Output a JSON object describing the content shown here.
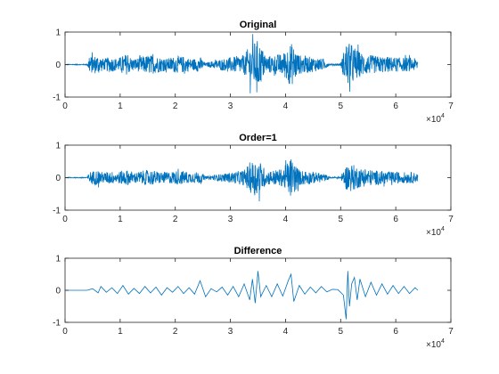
{
  "figure": {
    "background": "#ffffff",
    "axis_color": "#262626",
    "line_color": "#0072BD",
    "x_exponent_label": "×10",
    "x_exponent_power": "4"
  },
  "chart_data": [
    {
      "type": "line",
      "title": "Original",
      "xlabel": "",
      "ylabel": "",
      "xlim": [
        0,
        70000
      ],
      "ylim": [
        -1,
        1
      ],
      "x_ticks": [
        0,
        10000,
        20000,
        30000,
        40000,
        50000,
        60000,
        70000
      ],
      "x_tick_labels": [
        "0",
        "1",
        "2",
        "3",
        "4",
        "5",
        "6",
        "7"
      ],
      "y_ticks": [
        -1,
        0,
        1
      ],
      "y_tick_labels": [
        "-1",
        "0",
        "1"
      ],
      "x_multiplier": "×10^4",
      "grid": false,
      "series": [
        {
          "color": "#0072BD",
          "signal_length": 64000,
          "envelope": [
            [
              0,
              0.01
            ],
            [
              4000,
              0.02
            ],
            [
              4400,
              0.3
            ],
            [
              6000,
              0.35
            ],
            [
              7000,
              0.2
            ],
            [
              8000,
              0.28
            ],
            [
              9500,
              0.22
            ],
            [
              11000,
              0.38
            ],
            [
              12500,
              0.2
            ],
            [
              14000,
              0.3
            ],
            [
              15500,
              0.35
            ],
            [
              17000,
              0.28
            ],
            [
              18500,
              0.22
            ],
            [
              20000,
              0.3
            ],
            [
              21500,
              0.3
            ],
            [
              23000,
              0.2
            ],
            [
              24500,
              0.28
            ],
            [
              25500,
              0.05
            ],
            [
              27000,
              0.15
            ],
            [
              29000,
              0.22
            ],
            [
              31000,
              0.3
            ],
            [
              32500,
              0.35
            ],
            [
              33500,
              0.7
            ],
            [
              35000,
              0.9
            ],
            [
              36500,
              0.3
            ],
            [
              38000,
              0.35
            ],
            [
              39500,
              0.4
            ],
            [
              41000,
              0.8
            ],
            [
              42500,
              0.35
            ],
            [
              44000,
              0.3
            ],
            [
              45500,
              0.25
            ],
            [
              47000,
              0.2
            ],
            [
              48000,
              0.02
            ],
            [
              50000,
              0.05
            ],
            [
              51000,
              0.8
            ],
            [
              52000,
              0.75
            ],
            [
              53500,
              0.45
            ],
            [
              55000,
              0.35
            ],
            [
              57000,
              0.3
            ],
            [
              59000,
              0.28
            ],
            [
              61000,
              0.25
            ],
            [
              63000,
              0.25
            ],
            [
              64000,
              0.2
            ]
          ]
        }
      ]
    },
    {
      "type": "line",
      "title": "Order=1",
      "xlabel": "",
      "ylabel": "",
      "xlim": [
        0,
        70000
      ],
      "ylim": [
        -1,
        1
      ],
      "x_ticks": [
        0,
        10000,
        20000,
        30000,
        40000,
        50000,
        60000,
        70000
      ],
      "x_tick_labels": [
        "0",
        "1",
        "2",
        "3",
        "4",
        "5",
        "6",
        "7"
      ],
      "y_ticks": [
        -1,
        0,
        1
      ],
      "y_tick_labels": [
        "-1",
        "0",
        "1"
      ],
      "x_multiplier": "×10^4",
      "grid": false,
      "series": [
        {
          "color": "#0072BD",
          "signal_length": 64000,
          "envelope": [
            [
              0,
              0.01
            ],
            [
              4000,
              0.02
            ],
            [
              4400,
              0.22
            ],
            [
              6000,
              0.28
            ],
            [
              7000,
              0.18
            ],
            [
              8000,
              0.24
            ],
            [
              9500,
              0.2
            ],
            [
              11000,
              0.3
            ],
            [
              12500,
              0.18
            ],
            [
              14000,
              0.25
            ],
            [
              15500,
              0.28
            ],
            [
              17000,
              0.22
            ],
            [
              18500,
              0.2
            ],
            [
              20000,
              0.25
            ],
            [
              21500,
              0.25
            ],
            [
              23000,
              0.18
            ],
            [
              24500,
              0.22
            ],
            [
              25500,
              0.04
            ],
            [
              27000,
              0.1
            ],
            [
              29000,
              0.15
            ],
            [
              31000,
              0.22
            ],
            [
              32500,
              0.28
            ],
            [
              33500,
              0.55
            ],
            [
              35000,
              0.7
            ],
            [
              36500,
              0.25
            ],
            [
              38000,
              0.28
            ],
            [
              39500,
              0.32
            ],
            [
              41000,
              0.75
            ],
            [
              42500,
              0.28
            ],
            [
              44000,
              0.25
            ],
            [
              45500,
              0.2
            ],
            [
              47000,
              0.15
            ],
            [
              48000,
              0.02
            ],
            [
              50000,
              0.04
            ],
            [
              51000,
              0.45
            ],
            [
              52000,
              0.5
            ],
            [
              53500,
              0.35
            ],
            [
              55000,
              0.3
            ],
            [
              57000,
              0.25
            ],
            [
              59000,
              0.22
            ],
            [
              61000,
              0.2
            ],
            [
              63000,
              0.2
            ],
            [
              64000,
              0.15
            ]
          ]
        }
      ]
    },
    {
      "type": "line",
      "title": "Difference",
      "xlabel": "",
      "ylabel": "",
      "xlim": [
        0,
        70000
      ],
      "ylim": [
        -1,
        1
      ],
      "x_ticks": [
        0,
        10000,
        20000,
        30000,
        40000,
        50000,
        60000,
        70000
      ],
      "x_tick_labels": [
        "0",
        "1",
        "2",
        "3",
        "4",
        "5",
        "6",
        "7"
      ],
      "y_ticks": [
        -1,
        0,
        1
      ],
      "y_tick_labels": [
        "-1",
        "0",
        "1"
      ],
      "x_multiplier": "×10^4",
      "grid": false,
      "series": [
        {
          "color": "#0072BD",
          "x": [
            0,
            4000,
            5000,
            6000,
            6500,
            7500,
            8500,
            9500,
            10500,
            11500,
            12500,
            13500,
            14500,
            15500,
            16500,
            17500,
            18500,
            19500,
            20500,
            21500,
            22500,
            23500,
            24500,
            25500,
            26500,
            27500,
            28500,
            29500,
            30500,
            31500,
            32500,
            33500,
            34000,
            34500,
            35000,
            35500,
            36500,
            37500,
            38500,
            39500,
            40500,
            41000,
            41500,
            42500,
            43500,
            44500,
            45500,
            46500,
            47500,
            48500,
            49500,
            50500,
            51000,
            51300,
            51600,
            52000,
            52500,
            53000,
            53500,
            54500,
            55500,
            56500,
            57500,
            58500,
            59500,
            60500,
            61500,
            62500,
            63500,
            64000
          ],
          "values": [
            0,
            0,
            0.05,
            -0.08,
            0.12,
            -0.06,
            0.08,
            -0.1,
            0.15,
            -0.12,
            0.06,
            -0.1,
            0.12,
            -0.08,
            0.1,
            -0.15,
            0.08,
            -0.06,
            0.12,
            -0.1,
            0.08,
            -0.12,
            0.3,
            -0.2,
            0.05,
            -0.05,
            0.1,
            -0.15,
            0.12,
            -0.2,
            0.2,
            -0.3,
            0.35,
            -0.4,
            0.6,
            -0.2,
            0.15,
            -0.2,
            0.2,
            -0.18,
            0.3,
            0.5,
            -0.35,
            0.15,
            -0.12,
            0.1,
            -0.08,
            0.12,
            -0.05,
            0.03,
            0.02,
            -0.15,
            -0.9,
            0.6,
            -0.5,
            0.2,
            0.4,
            -0.3,
            0.35,
            -0.2,
            0.25,
            -0.15,
            0.2,
            -0.12,
            0.15,
            -0.1,
            0.12,
            -0.1,
            0.08,
            0.0
          ]
        }
      ]
    }
  ]
}
